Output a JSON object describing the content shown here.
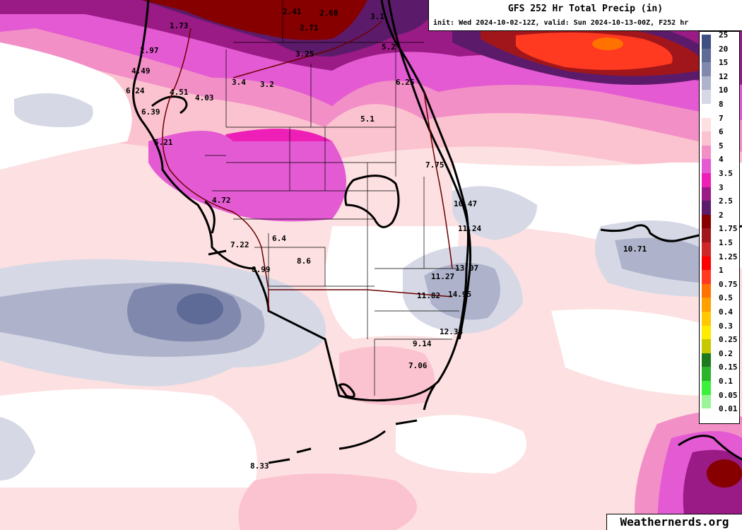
{
  "header": {
    "title": "GFS 252 Hr Total Precip (in)",
    "subtitle": "init: Wed 2024-10-02-12Z, valid: Sun 2024-10-13-00Z, F252 hr"
  },
  "legend": [
    {
      "label": "25",
      "color": "#3f4f82"
    },
    {
      "label": "20",
      "color": "#5e6b97"
    },
    {
      "label": "15",
      "color": "#8089ad"
    },
    {
      "label": "12",
      "color": "#aeb3cb"
    },
    {
      "label": "10",
      "color": "#d6d9e5"
    },
    {
      "label": "8",
      "color": "#ffffff"
    },
    {
      "label": "7",
      "color": "#fde0e1"
    },
    {
      "label": "6",
      "color": "#fbc3cf"
    },
    {
      "label": "5",
      "color": "#f28fc6"
    },
    {
      "label": "4",
      "color": "#e35ad3"
    },
    {
      "label": "3.5",
      "color": "#ee1fb6"
    },
    {
      "label": "3",
      "color": "#9a1a86"
    },
    {
      "label": "2.5",
      "color": "#5c1b6a"
    },
    {
      "label": "2",
      "color": "#860000"
    },
    {
      "label": "1.75",
      "color": "#a1161b"
    },
    {
      "label": "1.5",
      "color": "#cf2626"
    },
    {
      "label": "1.25",
      "color": "#ff0000"
    },
    {
      "label": "1",
      "color": "#ff3a20"
    },
    {
      "label": "0.75",
      "color": "#ff7200"
    },
    {
      "label": "0.5",
      "color": "#ff9f00"
    },
    {
      "label": "0.4",
      "color": "#ffc800"
    },
    {
      "label": "0.3",
      "color": "#ffeb00"
    },
    {
      "label": "0.25",
      "color": "#c8c800"
    },
    {
      "label": "0.2",
      "color": "#1e7a1e"
    },
    {
      "label": "0.15",
      "color": "#2db42d"
    },
    {
      "label": "0.1",
      "color": "#3cf03c"
    },
    {
      "label": "0.05",
      "color": "#9af59a"
    },
    {
      "label": "0.01",
      "color": "#ffffff"
    }
  ],
  "map_labels": [
    "1.73",
    "2.41",
    "2.68",
    "2.71",
    "2.97",
    "3.25",
    "4.49",
    "3.4",
    "3.2",
    "6.24",
    "4.51",
    "4.03",
    "6.39",
    "5.21",
    "5.1",
    "7.75",
    "4.72",
    "10.47",
    "11.24",
    "6.4",
    "7.22",
    "10.71",
    "8.6",
    "8.99",
    "11.27",
    "13.07",
    "11.82",
    "14.95",
    "12.38",
    "9.14",
    "7.06",
    "8.33",
    "5.2",
    "3.1",
    "6.25"
  ],
  "credit": "Weathernerds.org"
}
